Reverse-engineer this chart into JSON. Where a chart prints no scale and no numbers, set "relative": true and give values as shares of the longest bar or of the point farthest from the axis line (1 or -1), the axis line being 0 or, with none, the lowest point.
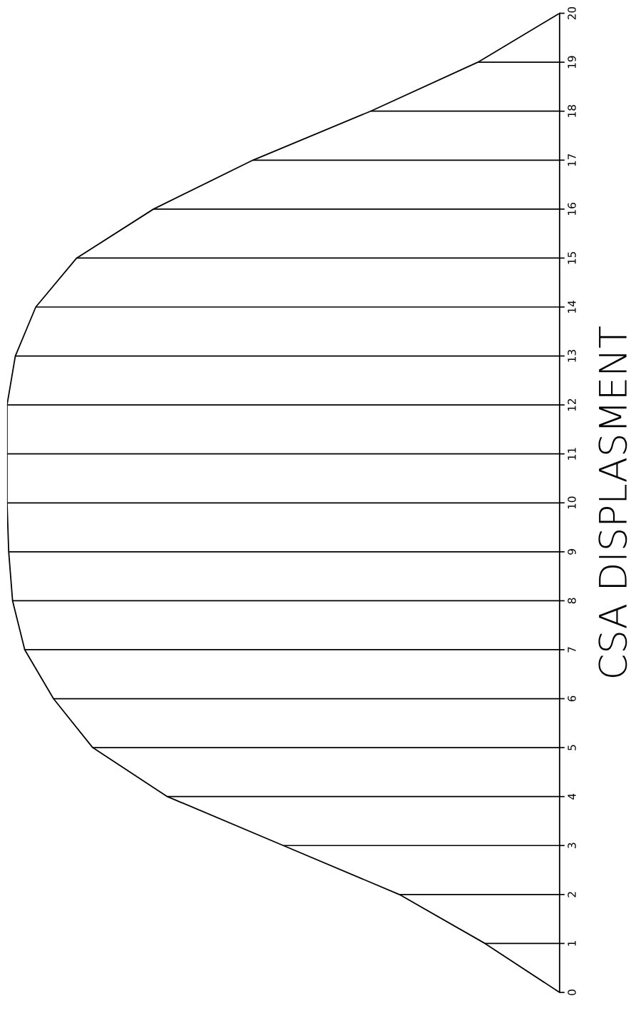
{
  "chart_data": {
    "type": "bar",
    "orientation": "horizontal",
    "relative": true,
    "ylabel": "CSA DISPLASMENT",
    "categories": [
      "20",
      "19",
      "18",
      "17",
      "16",
      "15",
      "14",
      "13",
      "12",
      "11",
      "10",
      "9",
      "8",
      "7",
      "6",
      "5",
      "4",
      "3",
      "2",
      "1",
      "0"
    ],
    "series": [
      {
        "color": "#000000",
        "values": [
          0,
          0.148,
          0.342,
          0.555,
          0.735,
          0.874,
          0.948,
          0.985,
          1,
          1,
          1,
          0.997,
          0.99,
          0.968,
          0.916,
          0.845,
          0.71,
          0.5,
          0.29,
          0.135,
          0
        ]
      },
      {
        "type": "line",
        "color": "#000000",
        "values": [
          0,
          0.148,
          0.342,
          0.555,
          0.735,
          0.874,
          0.948,
          0.985,
          1,
          1,
          1,
          0.997,
          0.99,
          0.968,
          0.916,
          0.845,
          0.71,
          0.5,
          0.29,
          0.135,
          0
        ]
      }
    ]
  }
}
